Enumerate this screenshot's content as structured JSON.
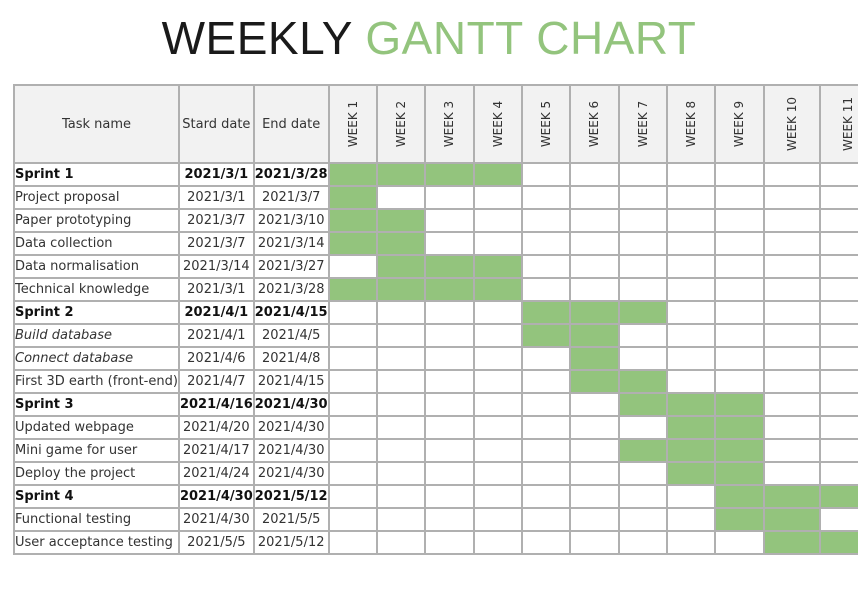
{
  "title": {
    "part1": "WEEKLY",
    "part2": "GANTT CHART"
  },
  "colors": {
    "bar": "#93c47d",
    "title_accent": "#93c47d",
    "header_bg": "#f2f2f2",
    "grid": "#b0b0b0"
  },
  "chart_data": {
    "type": "table",
    "columns": [
      "Task name",
      "Stard date",
      "End date"
    ],
    "weeks": [
      "WEEK 1",
      "WEEK 2",
      "WEEK 3",
      "WEEK 4",
      "WEEK 5",
      "WEEK 6",
      "WEEK 7",
      "WEEK 8",
      "WEEK 9",
      "WEEK 10",
      "WEEK 11"
    ],
    "tasks": [
      {
        "name": "Sprint 1",
        "start": "2021/3/1",
        "end": "2021/3/28",
        "sprint": true,
        "weeks": [
          1,
          2,
          3,
          4
        ]
      },
      {
        "name": "Project proposal",
        "start": "2021/3/1",
        "end": "2021/3/7",
        "weeks": [
          1
        ]
      },
      {
        "name": "Paper prototyping",
        "start": "2021/3/7",
        "end": "2021/3/10",
        "weeks": [
          1,
          2
        ]
      },
      {
        "name": "Data collection",
        "start": "2021/3/7",
        "end": "2021/3/14",
        "weeks": [
          1,
          2
        ]
      },
      {
        "name": "Data normalisation",
        "start": "2021/3/14",
        "end": "2021/3/27",
        "weeks": [
          2,
          3,
          4
        ]
      },
      {
        "name": "Technical knowledge",
        "start": "2021/3/1",
        "end": "2021/3/28",
        "weeks": [
          1,
          2,
          3,
          4
        ]
      },
      {
        "name": "Sprint 2",
        "start": "2021/4/1",
        "end": "2021/4/15",
        "sprint": true,
        "weeks": [
          5,
          6,
          7
        ]
      },
      {
        "name": "Build database",
        "start": "2021/4/1",
        "end": "2021/4/5",
        "italic": true,
        "weeks": [
          5,
          6
        ]
      },
      {
        "name": "Connect database",
        "start": "2021/4/6",
        "end": "2021/4/8",
        "italic": true,
        "weeks": [
          6
        ]
      },
      {
        "name": "First 3D earth (front-end)",
        "start": "2021/4/7",
        "end": "2021/4/15",
        "weeks": [
          6,
          7
        ]
      },
      {
        "name": "Sprint 3",
        "start": "2021/4/16",
        "end": "2021/4/30",
        "sprint": true,
        "weeks": [
          7,
          8,
          9
        ]
      },
      {
        "name": "Updated webpage",
        "start": "2021/4/20",
        "end": "2021/4/30",
        "weeks": [
          8,
          9
        ]
      },
      {
        "name": "Mini game for user",
        "start": "2021/4/17",
        "end": "2021/4/30",
        "weeks": [
          7,
          8,
          9
        ]
      },
      {
        "name": "Deploy the project",
        "start": "2021/4/24",
        "end": "2021/4/30",
        "weeks": [
          8,
          9
        ]
      },
      {
        "name": "Sprint 4",
        "start": "2021/4/30",
        "end": "2021/5/12",
        "sprint": true,
        "weeks": [
          9,
          10,
          11
        ]
      },
      {
        "name": "Functional testing",
        "start": "2021/4/30",
        "end": "2021/5/5",
        "weeks": [
          9,
          10
        ]
      },
      {
        "name": "User acceptance testing",
        "start": "2021/5/5",
        "end": "2021/5/12",
        "weeks": [
          10,
          11
        ]
      }
    ]
  }
}
